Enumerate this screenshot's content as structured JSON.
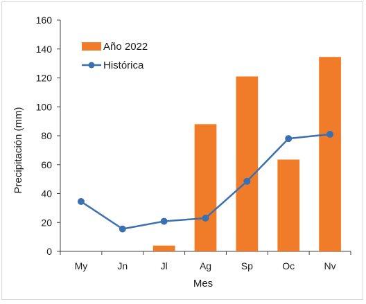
{
  "chart_data": {
    "type": "bar+line",
    "categories": [
      "My",
      "Jn",
      "Jl",
      "Ag",
      "Sp",
      "Oc",
      "Nv"
    ],
    "series": [
      {
        "name": "Año 2022",
        "type": "bar",
        "color": "#F07C2A",
        "values": [
          0,
          0,
          4,
          88,
          121,
          63.5,
          134.5
        ]
      },
      {
        "name": "Histórica",
        "type": "line",
        "color": "#3A6FB0",
        "values": [
          34.5,
          15.5,
          20.8,
          23,
          48.5,
          78,
          81
        ]
      }
    ],
    "xlabel": "Mes",
    "ylabel": "Precipitación (mm)",
    "ylim": [
      0,
      160
    ],
    "yticks": [
      0,
      20,
      40,
      60,
      80,
      100,
      120,
      140,
      160
    ],
    "grid": false,
    "legend_position": "top-left"
  }
}
